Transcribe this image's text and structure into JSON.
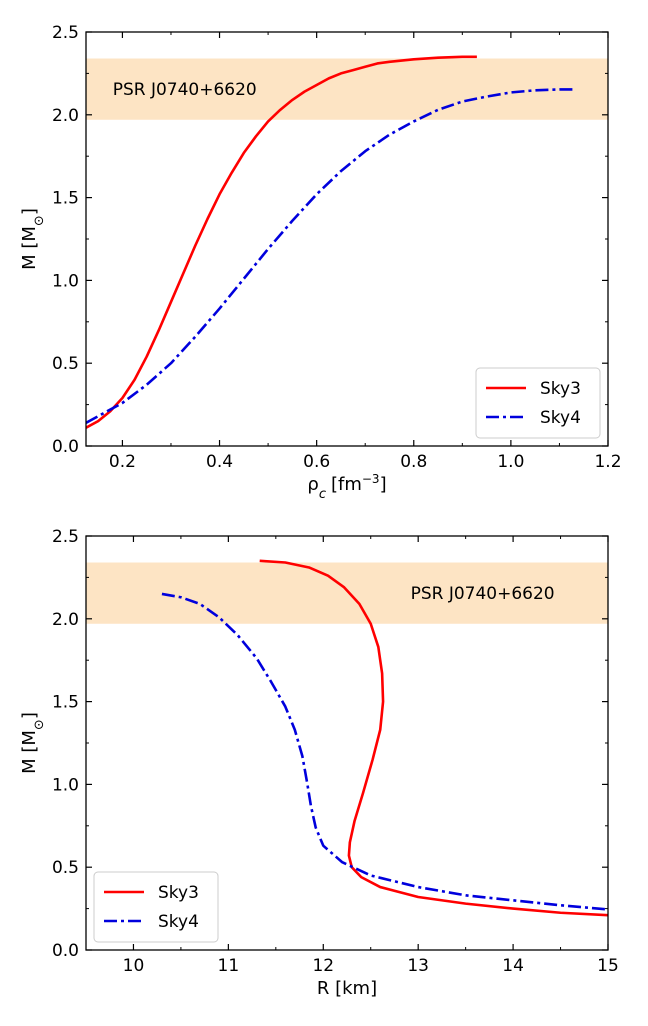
{
  "chart_data": [
    {
      "type": "line",
      "xlabel": "ρ",
      "xlabel_sub": "c",
      "xlabel_unit": "[fm",
      "xlabel_sup": "−3",
      "xlabel_end": "]",
      "ylabel": "M [M",
      "ylabel_sub": "⊙",
      "ylabel_end": "]",
      "xlim": [
        0.125,
        1.2
      ],
      "ylim": [
        0.0,
        2.5
      ],
      "xticks": [
        0.2,
        0.4,
        0.6,
        0.8,
        1.0,
        1.2
      ],
      "xtick_labels": [
        "0.2",
        "0.4",
        "0.6",
        "0.8",
        "1.0",
        "1.2"
      ],
      "yticks": [
        0.0,
        0.5,
        1.0,
        1.5,
        2.0,
        2.5
      ],
      "ytick_labels": [
        "0.0",
        "0.5",
        "1.0",
        "1.5",
        "2.0",
        "2.5"
      ],
      "band": {
        "ymin": 1.97,
        "ymax": 2.34,
        "label": "PSR J0740+6620",
        "label_x": 0.18,
        "label_y": 2.15,
        "color": "#fde4c4"
      },
      "legend": "lower-right",
      "series": [
        {
          "name": "Sky3",
          "color": "#ff0000",
          "style": "solid",
          "x": [
            0.125,
            0.15,
            0.175,
            0.2,
            0.225,
            0.25,
            0.275,
            0.3,
            0.325,
            0.35,
            0.375,
            0.4,
            0.425,
            0.45,
            0.475,
            0.5,
            0.525,
            0.55,
            0.575,
            0.6,
            0.625,
            0.65,
            0.675,
            0.7,
            0.725,
            0.75,
            0.8,
            0.85,
            0.9,
            0.93
          ],
          "y": [
            0.11,
            0.15,
            0.21,
            0.29,
            0.4,
            0.54,
            0.7,
            0.87,
            1.04,
            1.21,
            1.37,
            1.52,
            1.65,
            1.77,
            1.87,
            1.96,
            2.03,
            2.09,
            2.14,
            2.18,
            2.22,
            2.25,
            2.27,
            2.29,
            2.31,
            2.32,
            2.335,
            2.345,
            2.35,
            2.35
          ]
        },
        {
          "name": "Sky4",
          "color": "#0000dd",
          "style": "dashdot",
          "x": [
            0.125,
            0.15,
            0.2,
            0.25,
            0.3,
            0.35,
            0.4,
            0.45,
            0.5,
            0.55,
            0.6,
            0.65,
            0.7,
            0.75,
            0.8,
            0.85,
            0.9,
            0.95,
            1.0,
            1.05,
            1.1,
            1.13
          ],
          "y": [
            0.14,
            0.18,
            0.26,
            0.37,
            0.5,
            0.66,
            0.83,
            1.01,
            1.19,
            1.36,
            1.52,
            1.66,
            1.78,
            1.88,
            1.96,
            2.03,
            2.08,
            2.11,
            2.135,
            2.148,
            2.153,
            2.153
          ]
        }
      ]
    },
    {
      "type": "line",
      "xlabel": "R [km]",
      "ylabel": "M [M",
      "ylabel_sub": "⊙",
      "ylabel_end": "]",
      "xlim": [
        9.5,
        15.0
      ],
      "ylim": [
        0.0,
        2.5
      ],
      "xticks": [
        10,
        11,
        12,
        13,
        14,
        15
      ],
      "xtick_labels": [
        "10",
        "11",
        "12",
        "13",
        "14",
        "15"
      ],
      "yticks": [
        0.0,
        0.5,
        1.0,
        1.5,
        2.0,
        2.5
      ],
      "ytick_labels": [
        "0.0",
        "0.5",
        "1.0",
        "1.5",
        "2.0",
        "2.5"
      ],
      "band": {
        "ymin": 1.97,
        "ymax": 2.34,
        "label": "PSR J0740+6620",
        "label_x": 12.92,
        "label_y": 2.15,
        "color": "#fde4c4"
      },
      "legend": "lower-left",
      "series": [
        {
          "name": "Sky3",
          "color": "#ff0000",
          "style": "solid",
          "x": [
            11.33,
            11.6,
            11.85,
            12.05,
            12.22,
            12.38,
            12.5,
            12.58,
            12.62,
            12.63,
            12.6,
            12.52,
            12.42,
            12.33,
            12.28,
            12.27,
            12.3,
            12.4,
            12.6,
            13.0,
            13.5,
            14.0,
            14.5,
            15.0
          ],
          "y": [
            2.35,
            2.34,
            2.31,
            2.26,
            2.19,
            2.09,
            1.97,
            1.83,
            1.67,
            1.5,
            1.33,
            1.15,
            0.95,
            0.78,
            0.65,
            0.57,
            0.5,
            0.44,
            0.38,
            0.32,
            0.28,
            0.25,
            0.225,
            0.21
          ]
        },
        {
          "name": "Sky4",
          "color": "#0000dd",
          "style": "dashdot",
          "x": [
            10.3,
            10.5,
            10.7,
            10.9,
            11.1,
            11.3,
            11.45,
            11.6,
            11.7,
            11.78,
            11.83,
            11.87,
            11.92,
            12.0,
            12.2,
            12.5,
            13.0,
            13.5,
            14.0,
            14.5,
            15.0
          ],
          "y": [
            2.15,
            2.13,
            2.09,
            2.01,
            1.9,
            1.76,
            1.62,
            1.47,
            1.33,
            1.17,
            1.01,
            0.87,
            0.74,
            0.63,
            0.53,
            0.45,
            0.38,
            0.33,
            0.3,
            0.27,
            0.245
          ]
        }
      ]
    }
  ]
}
